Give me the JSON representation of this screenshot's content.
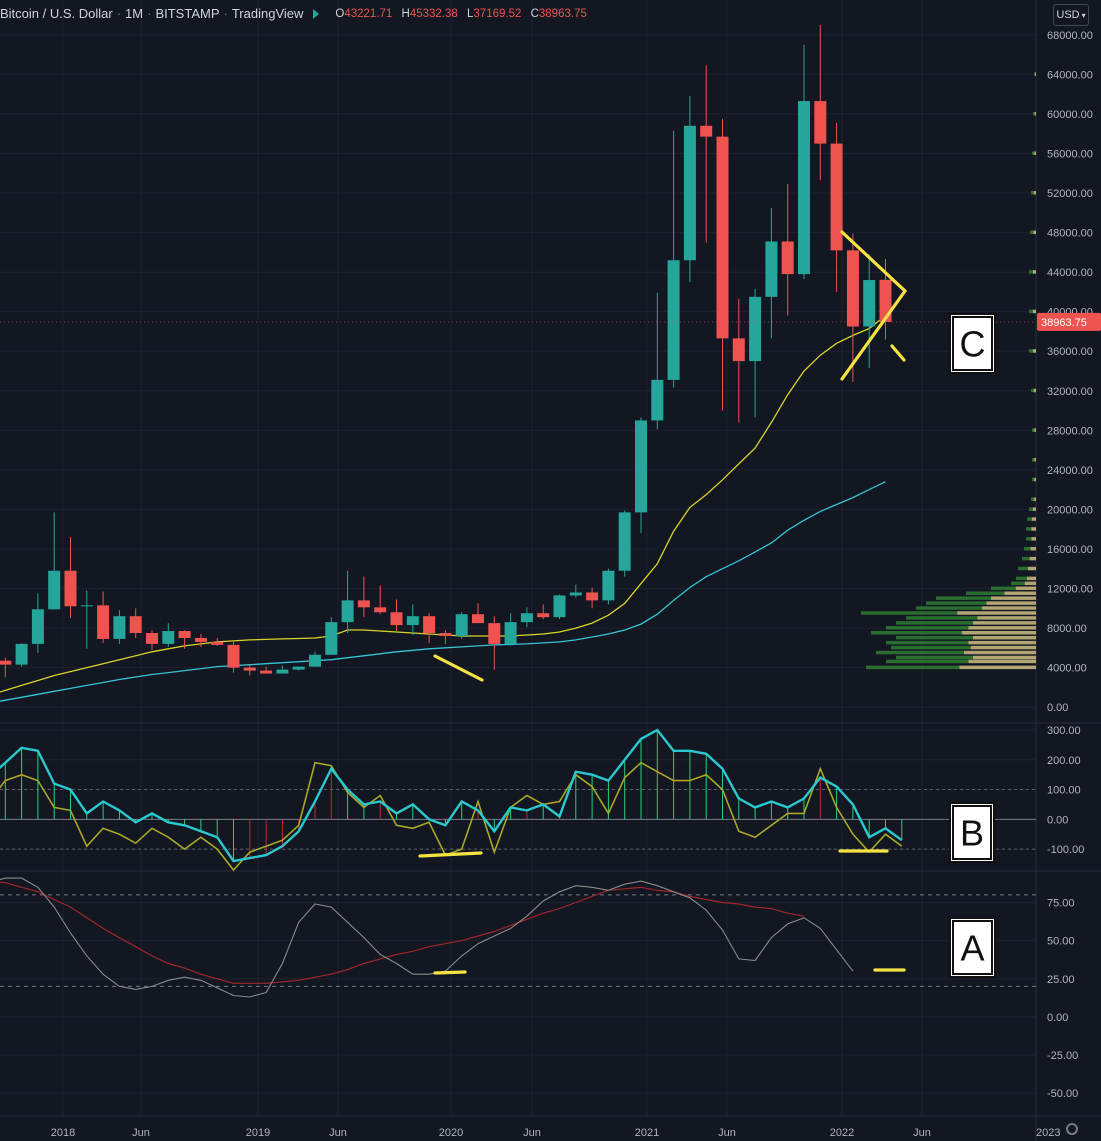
{
  "header": {
    "symbol": "Bitcoin / U.S. Dollar",
    "interval": "1M",
    "exchange": "BITSTAMP",
    "platform": "TradingView",
    "o_label": "O",
    "o_value": "43221.71",
    "h_label": "H",
    "h_value": "45332.38",
    "l_label": "L",
    "l_value": "37169.52",
    "c_label": "C",
    "c_value": "38963.75"
  },
  "currency_button": "USD",
  "annotations": {
    "a": "A",
    "b": "B",
    "c": "C"
  },
  "colors": {
    "background": "#131722",
    "up": "#26a69a",
    "down": "#ef5350",
    "ma_fast": "#d9d42a",
    "ma_slow": "#36c5d4",
    "annotation": "#f5e342",
    "osc_line": "#2ac9cf",
    "osc_signal": "#a8a826",
    "rsi_line": "#8a8a8a",
    "rsi_ma": "#a0262b",
    "price_badge": "#ef5350"
  },
  "chart_data": [
    {
      "type": "candlestick",
      "title": "Bitcoin / U.S. Dollar · 1M · BITSTAMP",
      "x_ticks": [
        "2018",
        "Jun",
        "2019",
        "Jun",
        "2020",
        "Jun",
        "2021",
        "Jun",
        "2022",
        "Jun",
        "2023"
      ],
      "y_ticks": [
        0,
        4000,
        8000,
        12000,
        16000,
        20000,
        24000,
        28000,
        32000,
        36000,
        40000,
        44000,
        48000,
        52000,
        56000,
        60000,
        64000,
        68000
      ],
      "y_tick_labels": [
        "0.00",
        "4000.00",
        "8000.00",
        "12000.00",
        "16000.00",
        "20000.00",
        "24000.00",
        "28000.00",
        "32000.00",
        "36000.00",
        "40000.00",
        "44000.00",
        "48000.00",
        "52000.00",
        "56000.00",
        "60000.00",
        "64000.00",
        "68000.00"
      ],
      "ylim": [
        -1500,
        69500
      ],
      "last_price_label": "38963.75",
      "last_price": 38963.75,
      "candles": [
        {
          "date": "2017-08",
          "o": 2900,
          "h": 4700,
          "l": 2700,
          "c": 4700
        },
        {
          "date": "2017-09",
          "o": 4700,
          "h": 5000,
          "l": 3000,
          "c": 4300
        },
        {
          "date": "2017-10",
          "o": 4300,
          "h": 6450,
          "l": 4100,
          "c": 6400
        },
        {
          "date": "2017-11",
          "o": 6400,
          "h": 11500,
          "l": 5500,
          "c": 9900
        },
        {
          "date": "2017-12",
          "o": 9900,
          "h": 19700,
          "l": 9900,
          "c": 13800
        },
        {
          "date": "2018-01",
          "o": 13800,
          "h": 17200,
          "l": 9000,
          "c": 10200
        },
        {
          "date": "2018-02",
          "o": 10200,
          "h": 11800,
          "l": 5900,
          "c": 10300
        },
        {
          "date": "2018-03",
          "o": 10300,
          "h": 11700,
          "l": 6500,
          "c": 6900
        },
        {
          "date": "2018-04",
          "o": 6900,
          "h": 9800,
          "l": 6400,
          "c": 9200
        },
        {
          "date": "2018-05",
          "o": 9200,
          "h": 10000,
          "l": 7000,
          "c": 7500
        },
        {
          "date": "2018-06",
          "o": 7500,
          "h": 7800,
          "l": 5800,
          "c": 6400
        },
        {
          "date": "2018-07",
          "o": 6400,
          "h": 8500,
          "l": 6100,
          "c": 7700
        },
        {
          "date": "2018-08",
          "o": 7700,
          "h": 7800,
          "l": 5900,
          "c": 7000
        },
        {
          "date": "2018-09",
          "o": 7000,
          "h": 7400,
          "l": 6100,
          "c": 6600
        },
        {
          "date": "2018-10",
          "o": 6600,
          "h": 7000,
          "l": 6200,
          "c": 6300
        },
        {
          "date": "2018-11",
          "o": 6300,
          "h": 6600,
          "l": 3500,
          "c": 4000
        },
        {
          "date": "2018-12",
          "o": 4000,
          "h": 4300,
          "l": 3200,
          "c": 3700
        },
        {
          "date": "2019-01",
          "o": 3700,
          "h": 4100,
          "l": 3400,
          "c": 3400
        },
        {
          "date": "2019-02",
          "o": 3400,
          "h": 4200,
          "l": 3400,
          "c": 3800
        },
        {
          "date": "2019-03",
          "o": 3800,
          "h": 4100,
          "l": 3700,
          "c": 4100
        },
        {
          "date": "2019-04",
          "o": 4100,
          "h": 5600,
          "l": 4100,
          "c": 5300
        },
        {
          "date": "2019-05",
          "o": 5300,
          "h": 9100,
          "l": 5300,
          "c": 8600
        },
        {
          "date": "2019-06",
          "o": 8600,
          "h": 13800,
          "l": 7500,
          "c": 10800
        },
        {
          "date": "2019-07",
          "o": 10800,
          "h": 13200,
          "l": 9100,
          "c": 10100
        },
        {
          "date": "2019-08",
          "o": 10100,
          "h": 12300,
          "l": 9400,
          "c": 9600
        },
        {
          "date": "2019-09",
          "o": 9600,
          "h": 10900,
          "l": 7700,
          "c": 8300
        },
        {
          "date": "2019-10",
          "o": 8300,
          "h": 10400,
          "l": 7300,
          "c": 9200
        },
        {
          "date": "2019-11",
          "o": 9200,
          "h": 9500,
          "l": 6500,
          "c": 7500
        },
        {
          "date": "2019-12",
          "o": 7500,
          "h": 7800,
          "l": 6400,
          "c": 7200
        },
        {
          "date": "2020-01",
          "o": 7200,
          "h": 9600,
          "l": 6900,
          "c": 9400
        },
        {
          "date": "2020-02",
          "o": 9400,
          "h": 10500,
          "l": 8500,
          "c": 8500
        },
        {
          "date": "2020-03",
          "o": 8500,
          "h": 9200,
          "l": 3800,
          "c": 6400
        },
        {
          "date": "2020-04",
          "o": 6400,
          "h": 9500,
          "l": 6200,
          "c": 8600
        },
        {
          "date": "2020-05",
          "o": 8600,
          "h": 10100,
          "l": 8100,
          "c": 9500
        },
        {
          "date": "2020-06",
          "o": 9500,
          "h": 10400,
          "l": 8900,
          "c": 9100
        },
        {
          "date": "2020-07",
          "o": 9100,
          "h": 11400,
          "l": 8900,
          "c": 11300
        },
        {
          "date": "2020-08",
          "o": 11300,
          "h": 12400,
          "l": 11100,
          "c": 11600
        },
        {
          "date": "2020-09",
          "o": 11600,
          "h": 12100,
          "l": 10000,
          "c": 10800
        },
        {
          "date": "2020-10",
          "o": 10800,
          "h": 14000,
          "l": 10400,
          "c": 13800
        },
        {
          "date": "2020-11",
          "o": 13800,
          "h": 19900,
          "l": 13200,
          "c": 19700
        },
        {
          "date": "2020-12",
          "o": 19700,
          "h": 29300,
          "l": 17600,
          "c": 29000
        },
        {
          "date": "2021-01",
          "o": 29000,
          "h": 41900,
          "l": 28100,
          "c": 33100
        },
        {
          "date": "2021-02",
          "o": 33100,
          "h": 58300,
          "l": 32300,
          "c": 45200
        },
        {
          "date": "2021-03",
          "o": 45200,
          "h": 61800,
          "l": 43000,
          "c": 58800
        },
        {
          "date": "2021-04",
          "o": 58800,
          "h": 64900,
          "l": 47000,
          "c": 57700
        },
        {
          "date": "2021-05",
          "o": 57700,
          "h": 59500,
          "l": 30000,
          "c": 37300
        },
        {
          "date": "2021-06",
          "o": 37300,
          "h": 41300,
          "l": 28800,
          "c": 35000
        },
        {
          "date": "2021-07",
          "o": 35000,
          "h": 42300,
          "l": 29300,
          "c": 41500
        },
        {
          "date": "2021-08",
          "o": 41500,
          "h": 50500,
          "l": 37300,
          "c": 47100
        },
        {
          "date": "2021-09",
          "o": 47100,
          "h": 52900,
          "l": 39600,
          "c": 43800
        },
        {
          "date": "2021-10",
          "o": 43800,
          "h": 67000,
          "l": 43300,
          "c": 61300
        },
        {
          "date": "2021-11",
          "o": 61300,
          "h": 69000,
          "l": 53300,
          "c": 57000
        },
        {
          "date": "2021-12",
          "o": 57000,
          "h": 59100,
          "l": 42000,
          "c": 46200
        },
        {
          "date": "2022-01",
          "o": 46200,
          "h": 47900,
          "l": 32900,
          "c": 38500
        },
        {
          "date": "2022-02",
          "o": 38500,
          "h": 45800,
          "l": 34300,
          "c": 43200
        },
        {
          "date": "2022-03",
          "o": 43221.71,
          "h": 45332.38,
          "l": 37169.52,
          "c": 38963.75
        }
      ],
      "series": [
        {
          "role": "fast moving average",
          "values": [
            1200,
            1700,
            2200,
            2700,
            3200,
            3600,
            4000,
            4400,
            4800,
            5200,
            5600,
            5900,
            6200,
            6400,
            6600,
            6700,
            6800,
            6850,
            6900,
            6950,
            7000,
            7200,
            7800,
            7800,
            7700,
            7600,
            7500,
            7400,
            7300,
            7200,
            7200,
            7200,
            7200,
            7300,
            7400,
            7600,
            8000,
            8500,
            9300,
            10500,
            12500,
            14500,
            17800,
            20200,
            21500,
            23000,
            24600,
            26200,
            28800,
            31600,
            34000,
            35600,
            36800,
            37600,
            38300,
            39600
          ]
        },
        {
          "role": "slow moving average",
          "values": [
            400,
            700,
            1000,
            1300,
            1600,
            1900,
            2200,
            2500,
            2800,
            3050,
            3300,
            3500,
            3700,
            3900,
            4100,
            4200,
            4300,
            4400,
            4500,
            4600,
            4700,
            4800,
            5000,
            5200,
            5400,
            5600,
            5750,
            5900,
            6000,
            6100,
            6200,
            6300,
            6350,
            6400,
            6500,
            6600,
            6800,
            7100,
            7400,
            7800,
            8400,
            9400,
            10800,
            12100,
            13200,
            14000,
            14800,
            15700,
            16600,
            17900,
            18900,
            19800,
            20500,
            21200,
            22000,
            22800
          ]
        }
      ],
      "annotation_label": "C",
      "volume_profile": "right-side horizontal volume histogram, heaviest between 4000 and 12000"
    },
    {
      "type": "oscillator",
      "y_ticks": [
        -100,
        0,
        100,
        200,
        300
      ],
      "y_tick_labels": [
        "-100.00",
        "0.00",
        "100.00",
        "200.00",
        "300.00"
      ],
      "ylim": [
        -170,
        320
      ],
      "reference_lines": [
        -100,
        100
      ],
      "annotation_label": "B",
      "series": [
        {
          "role": "main line",
          "values": [
            140,
            190,
            240,
            230,
            120,
            100,
            20,
            60,
            30,
            -10,
            20,
            -10,
            -20,
            -40,
            -60,
            -140,
            -130,
            -120,
            -90,
            -40,
            60,
            170,
            100,
            50,
            60,
            20,
            50,
            0,
            -20,
            60,
            30,
            -40,
            40,
            30,
            50,
            10,
            160,
            150,
            130,
            200,
            270,
            300,
            230,
            230,
            220,
            170,
            70,
            40,
            60,
            40,
            70,
            140,
            110,
            50,
            -60,
            -30,
            -70
          ]
        },
        {
          "role": "signal line",
          "values": [
            60,
            130,
            150,
            130,
            40,
            30,
            -90,
            -30,
            -50,
            -80,
            -30,
            -60,
            -100,
            -60,
            -100,
            -170,
            -110,
            -90,
            -70,
            -20,
            190,
            180,
            90,
            40,
            80,
            -20,
            -30,
            -10,
            -120,
            -100,
            60,
            -110,
            40,
            80,
            50,
            60,
            150,
            110,
            20,
            140,
            190,
            160,
            130,
            130,
            150,
            100,
            -40,
            -60,
            -20,
            20,
            20,
            170,
            40,
            -50,
            -110,
            -50,
            -90
          ]
        }
      ]
    },
    {
      "type": "line",
      "y_ticks": [
        -50,
        -25,
        0,
        25,
        50,
        75
      ],
      "y_tick_labels": [
        "-50.00",
        "-25.00",
        "0.00",
        "25.00",
        "50.00",
        "75.00"
      ],
      "ylim": [
        -65,
        95
      ],
      "reference_lines": [
        20,
        80
      ],
      "annotation_label": "A",
      "series": [
        {
          "role": "oscillator",
          "values": [
            88,
            91,
            91,
            85,
            72,
            55,
            40,
            28,
            20,
            18,
            20,
            24,
            26,
            24,
            19,
            14,
            13,
            16,
            35,
            62,
            74,
            72,
            62,
            52,
            41,
            35,
            28,
            28,
            30,
            40,
            48,
            53,
            58,
            66,
            76,
            82,
            86,
            85,
            83,
            87,
            89,
            86,
            82,
            78,
            70,
            57,
            38,
            37,
            52,
            61,
            65,
            58,
            44,
            30
          ]
        },
        {
          "role": "moving average",
          "values": [
            89,
            88,
            85,
            82,
            77,
            72,
            65,
            58,
            52,
            46,
            40,
            35,
            32,
            28,
            25,
            22,
            22,
            22,
            23,
            24,
            26,
            28,
            31,
            35,
            38,
            41,
            43,
            46,
            48,
            50,
            53,
            56,
            60,
            64,
            68,
            71,
            75,
            79,
            83,
            84,
            85,
            83,
            82,
            79,
            77,
            75,
            74,
            72,
            71,
            68,
            66
          ]
        }
      ]
    }
  ]
}
